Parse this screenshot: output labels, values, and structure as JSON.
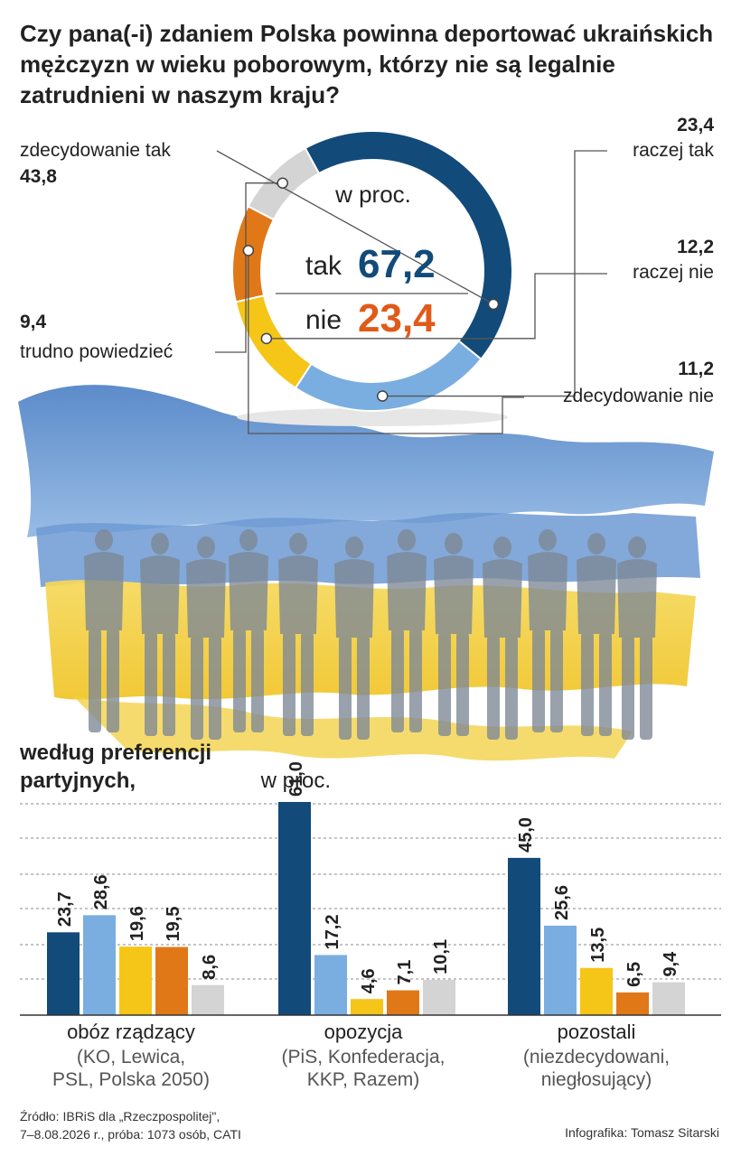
{
  "title": "Czy pana(-i) zdaniem Polska powinna deportować ukraińskich mężczyzn w wieku poborowym, którzy nie są legalnie zatrudnieni w naszym kraju?",
  "colors": {
    "zdecydowanie_tak": "#124a7a",
    "raczej_tak": "#7aaee0",
    "raczej_nie": "#f5c518",
    "zdecydowanie_nie": "#e07818",
    "trudno_powiedziec": "#d4d4d4",
    "tak_text": "#124a7a",
    "nie_text": "#e05a18",
    "flag_blue": "#5c8fcf",
    "flag_yellow": "#f2cf3c"
  },
  "donut": {
    "center_label": "w proc.",
    "tak_label": "tak",
    "tak_value": "67,2",
    "nie_label": "nie",
    "nie_value": "23,4"
  },
  "chart_data": [
    {
      "type": "pie",
      "slices": [
        {
          "label": "zdecydowanie tak",
          "value": 43.8,
          "display": "43,8",
          "color": "#124a7a"
        },
        {
          "label": "raczej tak",
          "value": 23.4,
          "display": "23,4",
          "color": "#7aaee0"
        },
        {
          "label": "raczej nie",
          "value": 12.2,
          "display": "12,2",
          "color": "#f5c518"
        },
        {
          "label": "zdecydowanie nie",
          "value": 11.2,
          "display": "11,2",
          "color": "#e07818"
        },
        {
          "label": "trudno powiedzieć",
          "value": 9.4,
          "display": "9,4",
          "color": "#d4d4d4"
        }
      ]
    },
    {
      "type": "bar",
      "title": "według preferencji partyjnych,",
      "unit": "w proc.",
      "ylim": [
        0,
        61
      ],
      "categories": [
        {
          "name": "obóz rządzący",
          "desc": "(KO, Lewica,\nPSL, Polska 2050)",
          "values": [
            23.7,
            28.6,
            19.6,
            19.5,
            8.6
          ],
          "labels": [
            "23,7",
            "28,6",
            "19,6",
            "19,5",
            "8,6"
          ]
        },
        {
          "name": "opozycja",
          "desc": "(PiS, Konfederacja,\nKKP, Razem)",
          "values": [
            61.0,
            17.2,
            4.6,
            7.1,
            10.1
          ],
          "labels": [
            "61,0",
            "17,2",
            "4,6",
            "7,1",
            "10,1"
          ]
        },
        {
          "name": "pozostali",
          "desc": "(niezdecydowani,\nniegłosujący)",
          "values": [
            45.0,
            25.6,
            13.5,
            6.5,
            9.4
          ],
          "labels": [
            "45,0",
            "25,6",
            "13,5",
            "6,5",
            "9,4"
          ]
        }
      ],
      "series_colors": [
        "#124a7a",
        "#7aaee0",
        "#f5c518",
        "#e07818",
        "#d4d4d4"
      ]
    }
  ],
  "bar_section": {
    "title_bold": "według preferencji partyjnych,",
    "title_unit": "w proc."
  },
  "footer": {
    "source": "Źródło: IBRiS dla „Rzeczpospolitej\",\n7–8.08.2026 r., próba: 1073 osób, CATI",
    "credit": "Infografika: Tomasz Sitarski"
  }
}
